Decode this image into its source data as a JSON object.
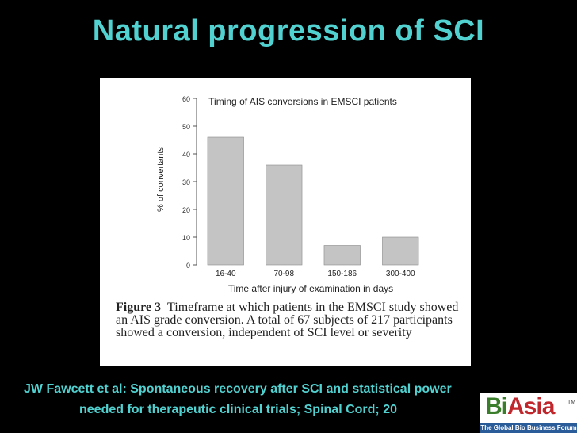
{
  "slide": {
    "title": "Natural progression of SCI",
    "citation_line1": "JW Fawcett et al: Spontaneous recovery after SCI and statistical power",
    "citation_line2": "needed for therapeutic clinical trials; Spinal Cord; 20"
  },
  "figure": {
    "caption_label": "Figure 3",
    "caption_text": "Timeframe at which patients in the EMSCI study showed an AIS grade conversion. A total of 67 subjects of 217 participants showed a conversion, independent of SCI level or severity"
  },
  "logo": {
    "b": "B",
    "i": "i",
    "asia": "Asia",
    "tm": "TM",
    "tagline": "The Global Bio Business Forum"
  },
  "colors": {
    "background": "#000000",
    "title": "#52d1d1",
    "bar": "#c4c4c4",
    "bar_stroke": "#8a8a8a"
  },
  "chart_data": {
    "type": "bar",
    "title": "Timing of AIS conversions in EMSCI patients",
    "xlabel": "Time after injury of examination in days",
    "ylabel": "% of convertants",
    "categories": [
      "16-40",
      "70-98",
      "150-186",
      "300-400"
    ],
    "values": [
      46,
      36,
      7,
      10
    ],
    "ylim": [
      0,
      60
    ],
    "yticks": [
      "0",
      "10",
      "20",
      "30",
      "40",
      "50",
      "60"
    ],
    "grid": false
  }
}
